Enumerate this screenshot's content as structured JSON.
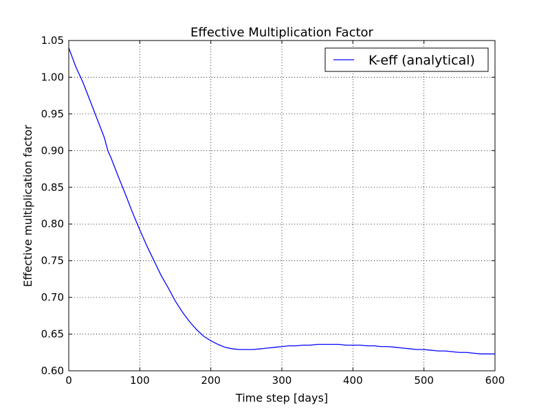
{
  "chart_data": {
    "type": "line",
    "title": "Effective Multiplication Factor",
    "xlabel": "Time step [days]",
    "ylabel": "Effective multiplication factor",
    "xlim": [
      0,
      600
    ],
    "ylim": [
      0.6,
      1.05
    ],
    "xticks": [
      0,
      100,
      200,
      300,
      400,
      500,
      600
    ],
    "xtick_labels": [
      "0",
      "100",
      "200",
      "300",
      "400",
      "500",
      "600"
    ],
    "yticks": [
      0.6,
      0.65,
      0.7,
      0.75,
      0.8,
      0.85,
      0.9,
      0.95,
      1.0,
      1.05
    ],
    "ytick_labels": [
      "0.60",
      "0.65",
      "0.70",
      "0.75",
      "0.80",
      "0.85",
      "0.90",
      "0.95",
      "1.00",
      "1.05"
    ],
    "grid": true,
    "legend": {
      "placement": "top-right"
    },
    "series": [
      {
        "name": "K-eff (analytical)",
        "color": "#0000ff",
        "x": [
          0,
          10,
          20,
          30,
          40,
          50,
          55,
          60,
          70,
          80,
          90,
          100,
          110,
          120,
          130,
          140,
          150,
          160,
          170,
          180,
          190,
          200,
          210,
          220,
          230,
          240,
          250,
          260,
          270,
          280,
          290,
          300,
          310,
          320,
          330,
          340,
          350,
          360,
          370,
          380,
          390,
          400,
          410,
          420,
          430,
          440,
          450,
          460,
          470,
          480,
          490,
          500,
          510,
          520,
          530,
          540,
          550,
          560,
          570,
          580,
          590,
          600
        ],
        "y": [
          1.04,
          1.014,
          0.993,
          0.968,
          0.943,
          0.918,
          0.9,
          0.889,
          0.864,
          0.84,
          0.815,
          0.792,
          0.77,
          0.75,
          0.73,
          0.713,
          0.695,
          0.68,
          0.667,
          0.656,
          0.647,
          0.641,
          0.636,
          0.632,
          0.63,
          0.629,
          0.629,
          0.629,
          0.63,
          0.631,
          0.632,
          0.633,
          0.634,
          0.634,
          0.635,
          0.635,
          0.636,
          0.636,
          0.636,
          0.636,
          0.635,
          0.635,
          0.635,
          0.634,
          0.634,
          0.633,
          0.633,
          0.632,
          0.631,
          0.63,
          0.629,
          0.629,
          0.628,
          0.627,
          0.627,
          0.626,
          0.625,
          0.625,
          0.624,
          0.623,
          0.623,
          0.623
        ]
      }
    ]
  }
}
